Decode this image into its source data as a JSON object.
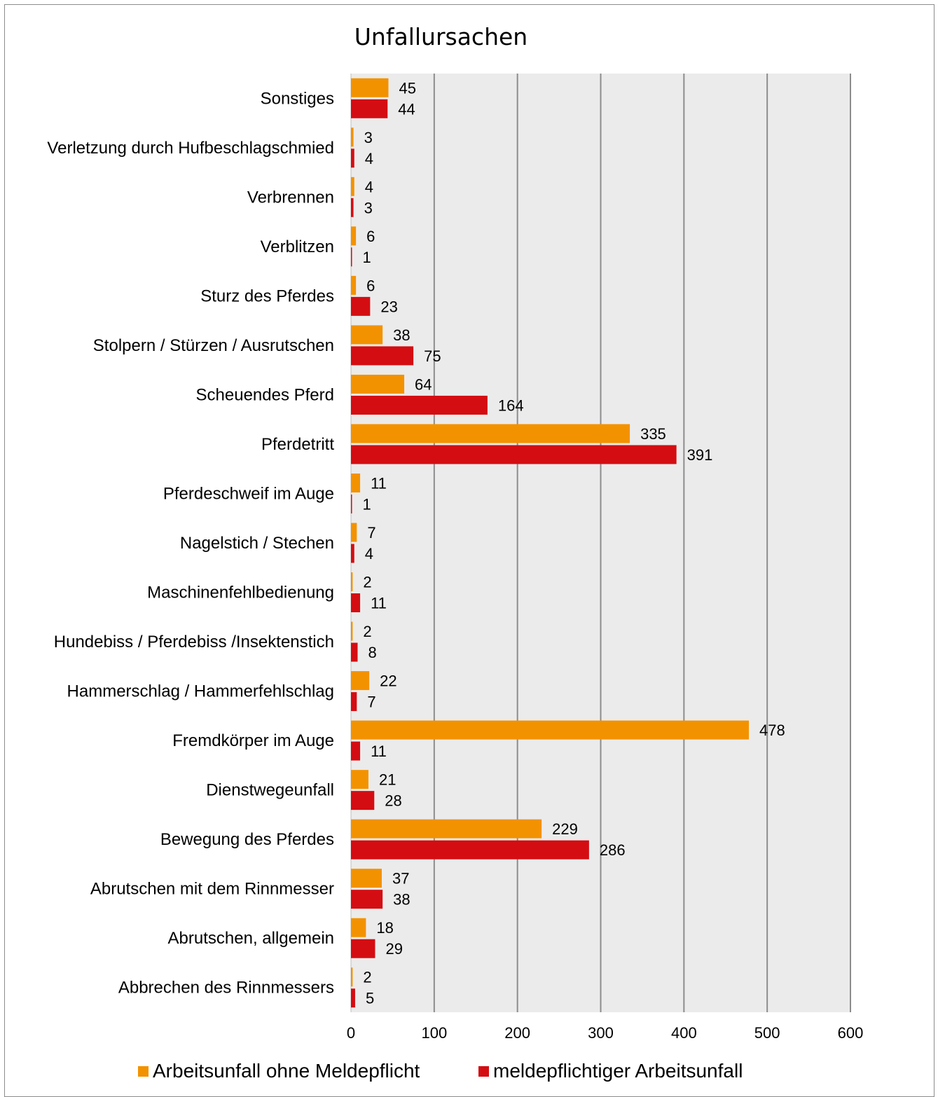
{
  "chart_data": {
    "type": "bar",
    "orientation": "horizontal",
    "title": "Unfallursachen",
    "categories": [
      "Sonstiges",
      "Verletzung durch Hufbeschlagschmied",
      "Verbrennen",
      "Verblitzen",
      "Sturz des Pferdes",
      "Stolpern / Stürzen / Ausrutschen",
      "Scheuendes Pferd",
      "Pferdetritt",
      "Pferdeschweif im Auge",
      "Nagelstich / Stechen",
      "Maschinenfehlbedienung",
      "Hundebiss / Pferdebiss /Insektenstich",
      "Hammerschlag / Hammerfehlschlag",
      "Fremdkörper im Auge",
      "Dienstwegeunfall",
      "Bewegung des Pferdes",
      "Abrutschen mit dem Rinnmesser",
      "Abrutschen, allgemein",
      "Abbrechen des Rinnmessers"
    ],
    "series": [
      {
        "name": "Arbeitsunfall ohne Meldepflicht",
        "color": "#f39200",
        "values": [
          45,
          3,
          4,
          6,
          6,
          38,
          64,
          335,
          11,
          7,
          2,
          2,
          22,
          478,
          21,
          229,
          37,
          18,
          2
        ]
      },
      {
        "name": "meldepflichtiger Arbeitsunfall",
        "color": "#d40d12",
        "values": [
          44,
          4,
          3,
          1,
          23,
          75,
          164,
          391,
          1,
          4,
          11,
          8,
          7,
          11,
          28,
          286,
          38,
          29,
          5
        ]
      }
    ],
    "xlim": [
      0,
      600
    ],
    "xticks": [
      "0",
      "100",
      "200",
      "300",
      "400",
      "500",
      "600"
    ],
    "grid": true,
    "legend": "bottom",
    "plot_background": "#ebebeb",
    "gridline_color": "#8c8c8c"
  }
}
